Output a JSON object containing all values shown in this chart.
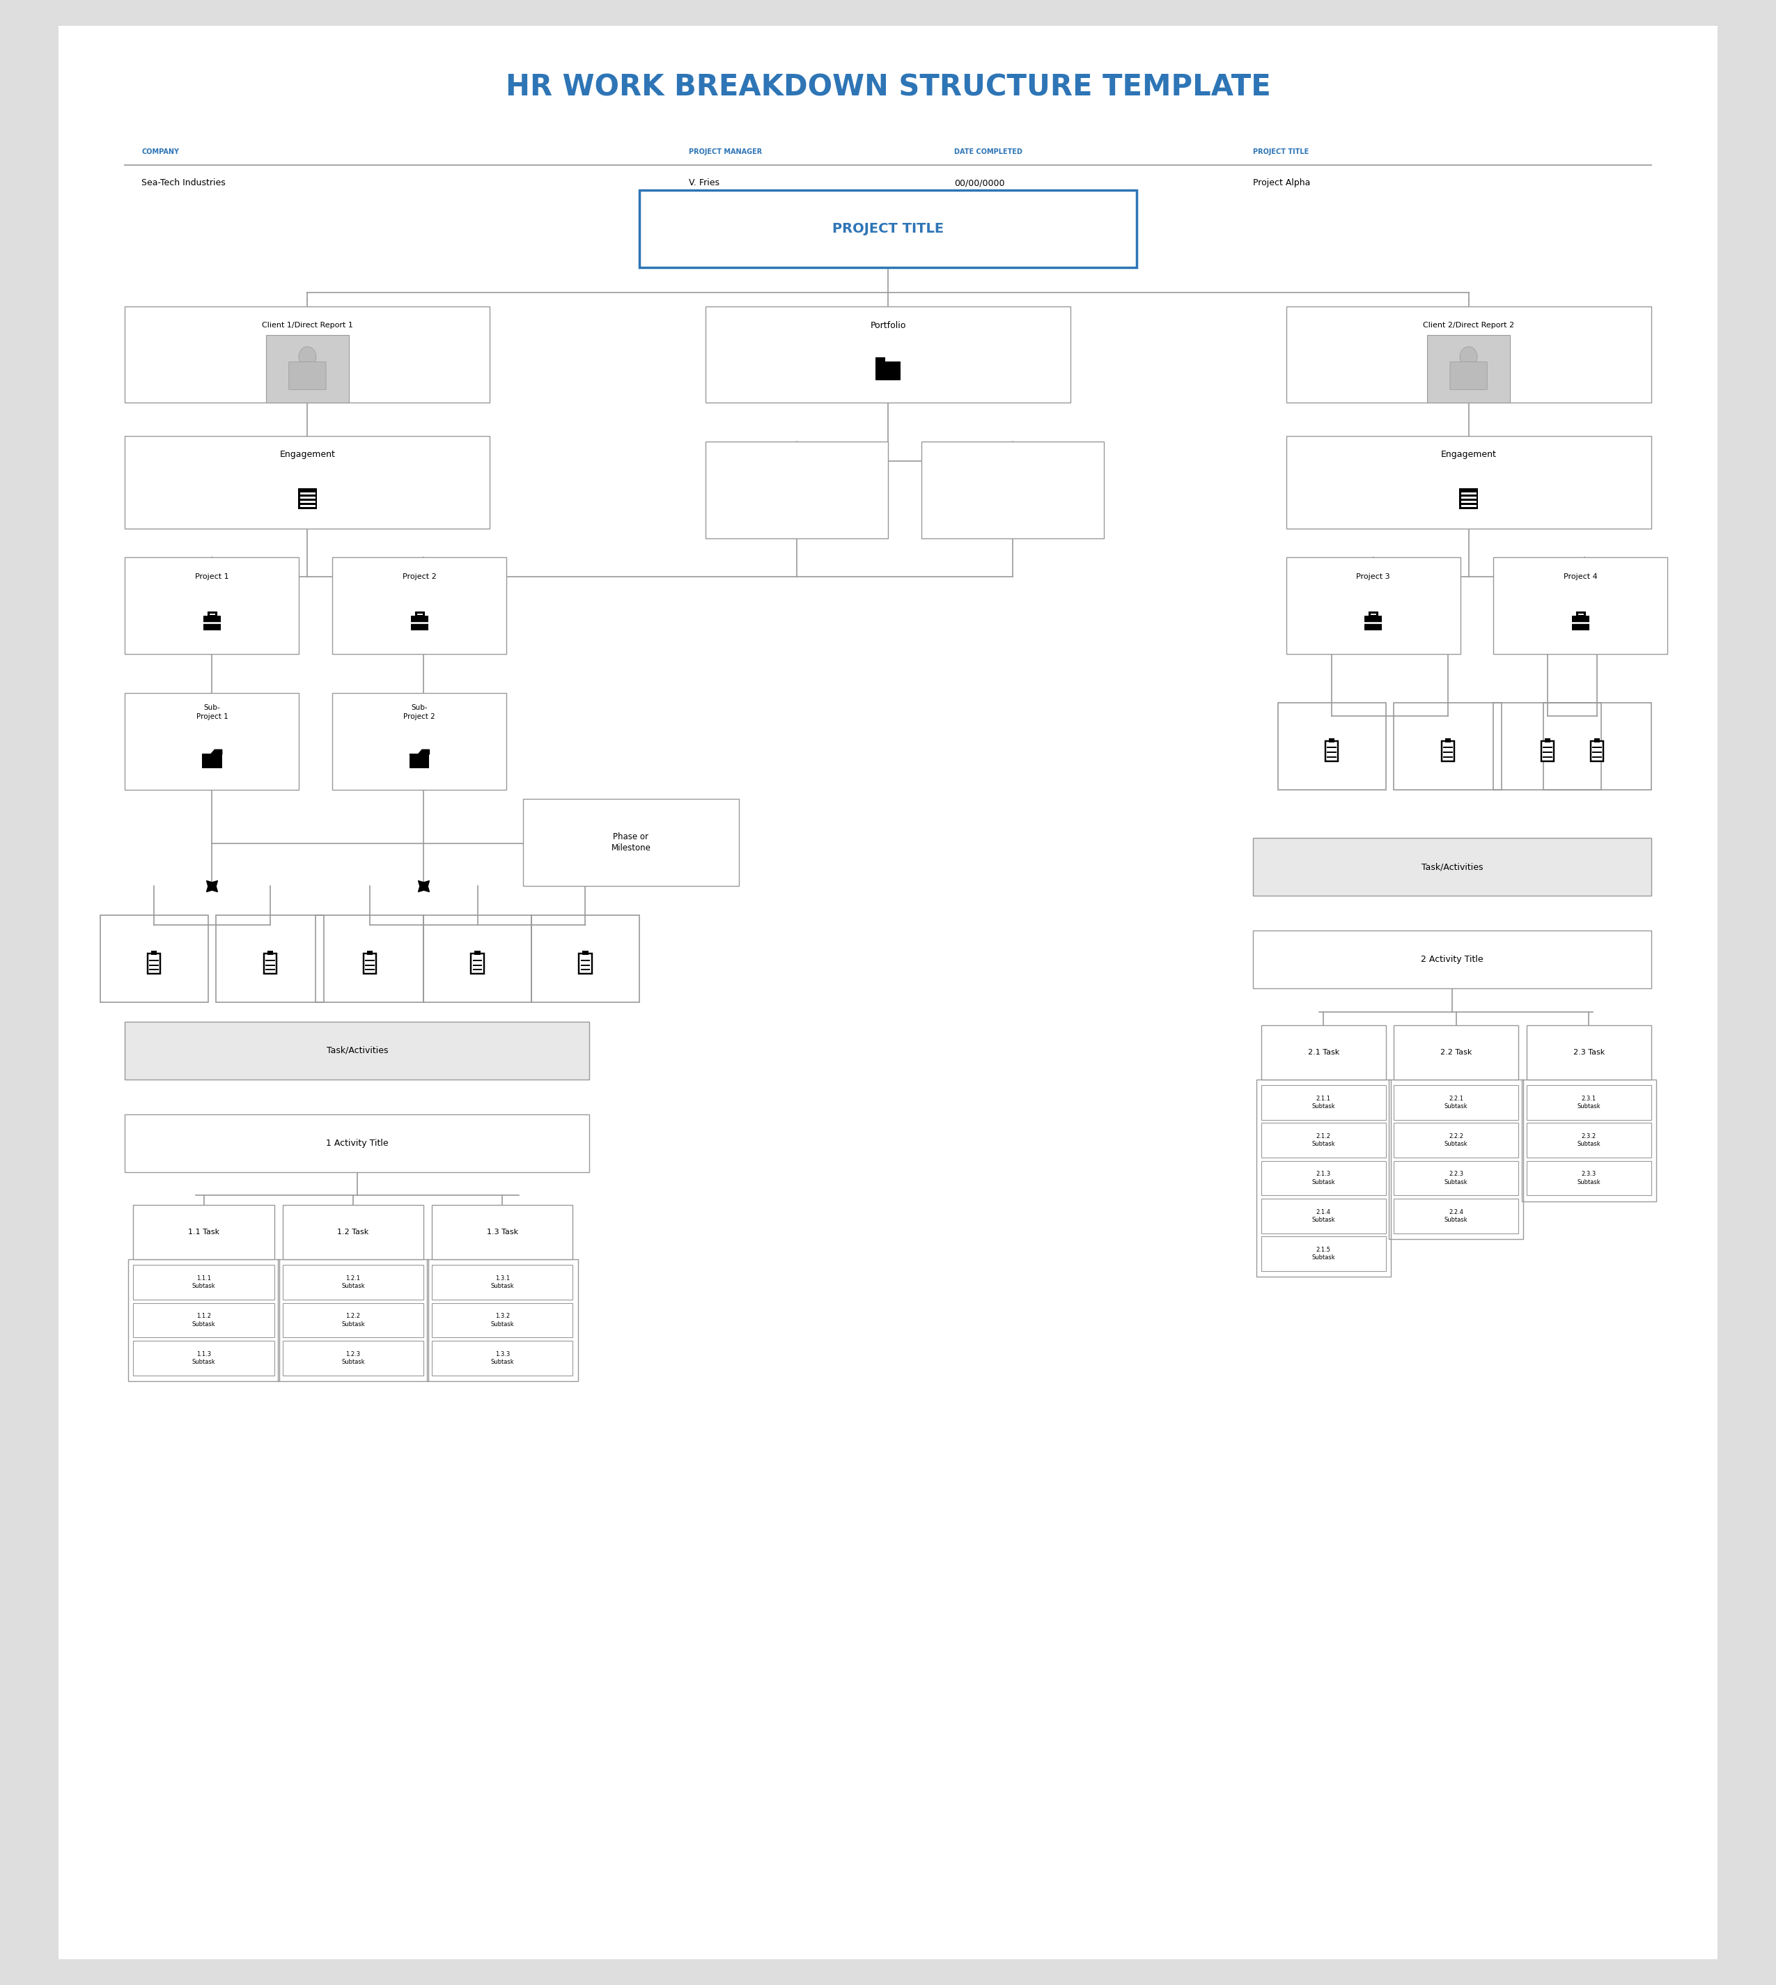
{
  "title": "HR WORK BREAKDOWN STRUCTURE TEMPLATE",
  "title_color": "#2E75B6",
  "bg_color": "#DEDEDE",
  "page_bg": "#FFFFFF",
  "header_line_color": "#AAAAAA",
  "label_color": "#2E75B6",
  "box_border": "#999999",
  "blue_border": "#2E75B6",
  "line_color": "#999999",
  "header_fields": [
    {
      "label": "COMPANY",
      "value": "Sea-Tech Industries",
      "x": 5
    },
    {
      "label": "PROJECT MANAGER",
      "value": "V. Fries",
      "x": 38
    },
    {
      "label": "DATE COMPLETED",
      "value": "00/00/0000",
      "x": 54
    },
    {
      "label": "PROJECT TITLE",
      "value": "Project Alpha",
      "x": 72
    }
  ],
  "project_title_text": "PROJECT TITLE",
  "tasks_left": [
    "1.1 Task",
    "1.2 Task",
    "1.3 Task"
  ],
  "tasks_right": [
    "2.1 Task",
    "2.2 Task",
    "2.3 Task"
  ],
  "subtasks_left": [
    [
      "1.1.1\nSubtask",
      "1.1.2\nSubtask",
      "1.1.3\nSubtask"
    ],
    [
      "1.2.1\nSubtask",
      "1.2.2\nSubtask",
      "1.2.3\nSubtask"
    ],
    [
      "1.3.1\nSubtask",
      "1.3.2\nSubtask",
      "1.3.3\nSubtask"
    ]
  ],
  "subtasks_right": [
    [
      "2.1.1\nSubtask",
      "2.1.2\nSubtask",
      "2.1.3\nSubtask",
      "2.1.4\nSubtask",
      "2.1.5\nSubtask"
    ],
    [
      "2.2.1\nSubtask",
      "2.2.2\nSubtask",
      "2.2.3\nSubtask",
      "2.2.4\nSubtask"
    ],
    [
      "2.3.1\nSubtask",
      "2.3.2\nSubtask",
      "2.3.3\nSubtask"
    ]
  ]
}
